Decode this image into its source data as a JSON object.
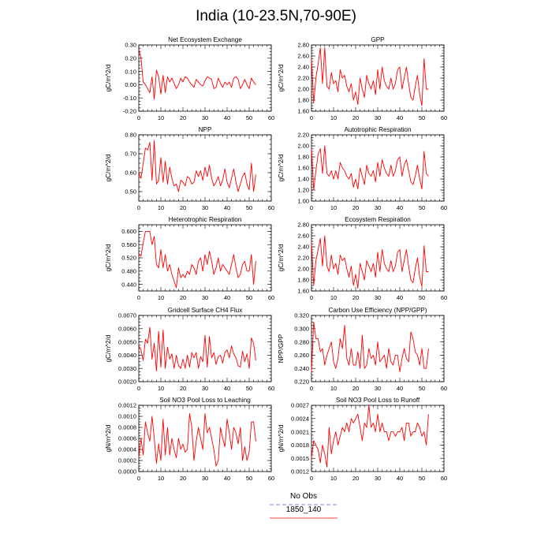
{
  "title": "India (10-23.5N,70-90E)",
  "legend": {
    "items": [
      {
        "label": "No Obs",
        "color": "#8080ff",
        "dash": true
      },
      {
        "label": "1850_140",
        "color": "#ff4040",
        "dash": false
      }
    ]
  },
  "chart_data": [
    {
      "type": "line",
      "title": "Net Ecosystem Exchange",
      "ylabel": "gC/m^2/d",
      "xlim": [
        0,
        60
      ],
      "xticks": [
        0,
        10,
        20,
        30,
        40,
        50,
        60
      ],
      "ylim": [
        -0.2,
        0.3
      ],
      "yticks": [
        "-0.20",
        "-0.10",
        "0.00",
        "0.10",
        "0.20",
        "0.30"
      ],
      "series": [
        {
          "color": "#ff0000",
          "x0": 0,
          "values": [
            0.27,
            0.2,
            0.02,
            0.0,
            -0.03,
            -0.06,
            0.06,
            -0.11,
            0.11,
            0.06,
            -0.07,
            0.07,
            -0.06,
            0.06,
            0.02,
            0.05,
            0.01,
            -0.03,
            0.0,
            0.05,
            0.02,
            0.06,
            0.05,
            0.02,
            0.0,
            -0.02,
            0.04,
            0.02,
            0.0,
            -0.01,
            0.03,
            0.06,
            0.05,
            0.04,
            -0.03,
            -0.02,
            0.05,
            0.01,
            -0.02,
            0.02,
            0.0,
            0.02,
            -0.02,
            0.05,
            0.06,
            0.04,
            -0.03,
            0.0,
            0.04,
            0.0,
            -0.03,
            0.05,
            0.02,
            0.0
          ]
        }
      ]
    },
    {
      "type": "line",
      "title": "GPP",
      "ylabel": "gC/m^2/d",
      "xlim": [
        0,
        60
      ],
      "xticks": [
        0,
        10,
        20,
        30,
        40,
        50,
        60
      ],
      "ylim": [
        1.6,
        2.8
      ],
      "yticks": [
        "1.60",
        "1.80",
        "2.00",
        "2.20",
        "2.40",
        "2.60",
        "2.80"
      ],
      "series": [
        {
          "color": "#ff0000",
          "x0": 0,
          "values": [
            2.55,
            1.75,
            2.2,
            2.45,
            2.75,
            2.1,
            2.75,
            2.05,
            2.0,
            2.3,
            2.1,
            2.15,
            1.95,
            2.35,
            2.2,
            2.25,
            2.05,
            1.95,
            2.1,
            1.8,
            1.95,
            1.72,
            2.2,
            2.0,
            1.85,
            2.25,
            2.1,
            2.0,
            2.15,
            1.9,
            2.35,
            2.0,
            2.4,
            2.15,
            2.05,
            2.0,
            2.2,
            2.0,
            2.1,
            2.35,
            2.4,
            2.0,
            2.2,
            2.4,
            2.1,
            1.85,
            1.8,
            2.05,
            2.25,
            1.9,
            1.7,
            2.55,
            2.0,
            2.0
          ]
        }
      ]
    },
    {
      "type": "line",
      "title": "NPP",
      "ylabel": "gC/m^2/d",
      "xlim": [
        0,
        60
      ],
      "xticks": [
        0,
        10,
        20,
        30,
        40,
        50,
        60
      ],
      "ylim": [
        0.45,
        0.8
      ],
      "yticks": [
        "0.50",
        "0.60",
        "0.70",
        "0.80"
      ],
      "series": [
        {
          "color": "#ff0000",
          "x0": 0,
          "values": [
            0.6,
            0.57,
            0.65,
            0.73,
            0.72,
            0.76,
            0.56,
            0.77,
            0.54,
            0.56,
            0.68,
            0.55,
            0.66,
            0.54,
            0.63,
            0.57,
            0.53,
            0.54,
            0.5,
            0.56,
            0.55,
            0.53,
            0.58,
            0.57,
            0.54,
            0.55,
            0.61,
            0.58,
            0.61,
            0.56,
            0.63,
            0.58,
            0.64,
            0.57,
            0.53,
            0.55,
            0.58,
            0.53,
            0.56,
            0.62,
            0.55,
            0.52,
            0.57,
            0.62,
            0.55,
            0.5,
            0.54,
            0.58,
            0.6,
            0.54,
            0.51,
            0.65,
            0.5,
            0.59
          ]
        }
      ]
    },
    {
      "type": "line",
      "title": "Autotrophic Respiration",
      "ylabel": "gC/m^2/d",
      "xlim": [
        0,
        60
      ],
      "xticks": [
        0,
        10,
        20,
        30,
        40,
        50,
        60
      ],
      "ylim": [
        1.0,
        2.2
      ],
      "yticks": [
        "1.00",
        "1.20",
        "1.40",
        "1.60",
        "1.80",
        "2.00",
        "2.20"
      ],
      "series": [
        {
          "color": "#ff0000",
          "x0": 0,
          "values": [
            1.95,
            1.2,
            1.55,
            1.85,
            1.95,
            1.5,
            2.0,
            1.5,
            1.45,
            1.55,
            1.4,
            1.55,
            1.4,
            1.7,
            1.6,
            1.55,
            1.45,
            1.4,
            1.5,
            1.25,
            1.4,
            1.22,
            1.6,
            1.45,
            1.3,
            1.65,
            1.5,
            1.45,
            1.55,
            1.35,
            1.7,
            1.45,
            1.75,
            1.6,
            1.5,
            1.45,
            1.65,
            1.45,
            1.55,
            1.75,
            1.8,
            1.45,
            1.65,
            1.75,
            1.55,
            1.35,
            1.3,
            1.45,
            1.65,
            1.4,
            1.22,
            1.9,
            1.5,
            1.45
          ]
        }
      ]
    },
    {
      "type": "line",
      "title": "Heterotrophic Respiration",
      "ylabel": "gC/m^2/d",
      "xlim": [
        0,
        60
      ],
      "xticks": [
        0,
        10,
        20,
        30,
        40,
        50,
        60
      ],
      "ylim": [
        0.42,
        0.62
      ],
      "yticks": [
        "0.440",
        "0.480",
        "0.520",
        "0.560",
        "0.600"
      ],
      "series": [
        {
          "color": "#ff0000",
          "x0": 0,
          "values": [
            0.53,
            0.525,
            0.565,
            0.6,
            0.6,
            0.6,
            0.56,
            0.585,
            0.5,
            0.49,
            0.545,
            0.49,
            0.53,
            0.48,
            0.5,
            0.47,
            0.45,
            0.43,
            0.49,
            0.46,
            0.47,
            0.46,
            0.48,
            0.47,
            0.5,
            0.49,
            0.47,
            0.51,
            0.52,
            0.48,
            0.53,
            0.5,
            0.54,
            0.51,
            0.47,
            0.49,
            0.52,
            0.48,
            0.5,
            0.49,
            0.48,
            0.47,
            0.5,
            0.53,
            0.49,
            0.46,
            0.47,
            0.5,
            0.51,
            0.48,
            0.48,
            0.53,
            0.44,
            0.51
          ]
        }
      ]
    },
    {
      "type": "line",
      "title": "Ecosystem Respiration",
      "ylabel": "gC/m^2/d",
      "xlim": [
        0,
        60
      ],
      "xticks": [
        0,
        10,
        20,
        30,
        40,
        50,
        60
      ],
      "ylim": [
        1.6,
        2.8
      ],
      "yticks": [
        "1.60",
        "1.80",
        "2.00",
        "2.20",
        "2.40",
        "2.60",
        "2.80"
      ],
      "series": [
        {
          "color": "#ff0000",
          "x0": 0,
          "values": [
            2.48,
            1.7,
            2.15,
            2.35,
            2.55,
            2.05,
            2.6,
            2.05,
            1.95,
            2.25,
            2.0,
            2.1,
            1.9,
            2.25,
            2.15,
            2.2,
            2.0,
            1.85,
            2.05,
            1.7,
            1.9,
            1.65,
            2.1,
            1.95,
            1.8,
            2.15,
            2.05,
            1.95,
            2.1,
            1.85,
            2.3,
            1.95,
            2.35,
            2.1,
            2.0,
            1.95,
            2.15,
            1.95,
            2.05,
            2.3,
            2.35,
            1.95,
            2.15,
            2.35,
            2.05,
            1.8,
            1.75,
            2.0,
            2.2,
            1.85,
            1.68,
            2.42,
            1.95,
            1.95
          ]
        }
      ]
    },
    {
      "type": "line",
      "title": "Gridcell Surface CH4 Flux",
      "ylabel": "gC/m^2/d",
      "xlim": [
        0,
        60
      ],
      "xticks": [
        0,
        10,
        20,
        30,
        40,
        50,
        60
      ],
      "ylim": [
        0.002,
        0.007
      ],
      "yticks": [
        "0.0020",
        "0.0030",
        "0.0040",
        "0.0050",
        "0.0060",
        "0.0070"
      ],
      "series": [
        {
          "color": "#ff0000",
          "x0": 0,
          "values": [
            0.0047,
            0.0044,
            0.0036,
            0.0052,
            0.0049,
            0.0061,
            0.0037,
            0.0049,
            0.0028,
            0.0058,
            0.0031,
            0.0059,
            0.003,
            0.0046,
            0.0037,
            0.0041,
            0.003,
            0.004,
            0.0032,
            0.003,
            0.0037,
            0.003,
            0.004,
            0.0031,
            0.0042,
            0.0038,
            0.0042,
            0.003,
            0.0039,
            0.0035,
            0.0055,
            0.0031,
            0.0054,
            0.0038,
            0.0042,
            0.0033,
            0.0039,
            0.004,
            0.0034,
            0.0042,
            0.0044,
            0.0038,
            0.0047,
            0.0041,
            0.0038,
            0.0032,
            0.0031,
            0.0043,
            0.0035,
            0.0041,
            0.003,
            0.0053,
            0.0049,
            0.0036
          ]
        }
      ]
    },
    {
      "type": "line",
      "title": "Carbon Use Efficiency (NPP/GPP)",
      "ylabel": "NPP/GPP",
      "xlim": [
        0,
        60
      ],
      "xticks": [
        0,
        10,
        20,
        30,
        40,
        50,
        60
      ],
      "ylim": [
        0.22,
        0.32
      ],
      "yticks": [
        "0.220",
        "0.240",
        "0.260",
        "0.280",
        "0.300",
        "0.320"
      ],
      "series": [
        {
          "color": "#ff0000",
          "x0": 0,
          "values": [
            0.235,
            0.31,
            0.285,
            0.285,
            0.265,
            0.27,
            0.245,
            0.26,
            0.27,
            0.28,
            0.25,
            0.24,
            0.255,
            0.285,
            0.27,
            0.305,
            0.255,
            0.245,
            0.27,
            0.245,
            0.245,
            0.265,
            0.24,
            0.29,
            0.24,
            0.245,
            0.27,
            0.255,
            0.26,
            0.245,
            0.28,
            0.25,
            0.255,
            0.26,
            0.24,
            0.27,
            0.25,
            0.245,
            0.26,
            0.26,
            0.235,
            0.255,
            0.27,
            0.255,
            0.25,
            0.295,
            0.285,
            0.265,
            0.26,
            0.245,
            0.27,
            0.24,
            0.24,
            0.27
          ]
        }
      ]
    },
    {
      "type": "line",
      "title": "Soil NO3 Pool Loss to Leaching",
      "ylabel": "gN/m^2/d",
      "xlim": [
        0,
        60
      ],
      "xticks": [
        0,
        10,
        20,
        30,
        40,
        50,
        60
      ],
      "ylim": [
        0.0,
        0.0012
      ],
      "yticks": [
        "0.0000",
        "0.0002",
        "0.0004",
        "0.0006",
        "0.0008",
        "0.0010",
        "0.0012"
      ],
      "series": [
        {
          "color": "#ff0000",
          "x0": 0,
          "values": [
            0.00025,
            0.0006,
            0.0003,
            0.0009,
            0.0007,
            0.00055,
            0.001,
            0.0006,
            0.00015,
            0.0005,
            0.0002,
            0.00095,
            0.0003,
            0.0008,
            0.0003,
            0.0006,
            0.0004,
            0.00025,
            0.0006,
            0.0004,
            0.0005,
            0.00035,
            0.0004,
            0.00105,
            0.0008,
            0.0002,
            0.00055,
            0.0008,
            0.0006,
            0.0004,
            0.00105,
            0.0007,
            0.0008,
            0.0006,
            0.0004,
            0.0001,
            0.0002,
            0.0008,
            0.0006,
            0.00045,
            0.00095,
            0.0007,
            0.0004,
            0.0008,
            0.0007,
            0.0005,
            0.0008,
            0.0002,
            0.00045,
            0.0002,
            0.00035,
            0.0009,
            0.0009,
            0.00055
          ]
        }
      ]
    },
    {
      "type": "line",
      "title": "Soil NO3 Pool Loss to Runoff",
      "ylabel": "gN/m^2/d",
      "xlim": [
        0,
        60
      ],
      "xticks": [
        0,
        10,
        20,
        30,
        40,
        50,
        60
      ],
      "ylim": [
        0.0012,
        0.0027
      ],
      "yticks": [
        "0.0012",
        "0.0015",
        "0.0018",
        "0.0021",
        "0.0024",
        "0.0027"
      ],
      "series": [
        {
          "color": "#ff0000",
          "x0": 0,
          "values": [
            0.0015,
            0.0019,
            0.0018,
            0.0017,
            0.0014,
            0.0018,
            0.0016,
            0.0013,
            0.0022,
            0.0016,
            0.0019,
            0.0021,
            0.0018,
            0.002,
            0.0022,
            0.0021,
            0.0023,
            0.0021,
            0.0024,
            0.0023,
            0.0024,
            0.0025,
            0.0022,
            0.0019,
            0.0023,
            0.0022,
            0.0027,
            0.0022,
            0.0023,
            0.0021,
            0.0025,
            0.0021,
            0.0023,
            0.0021,
            0.0021,
            0.0019,
            0.0021,
            0.0021,
            0.002,
            0.0021,
            0.0021,
            0.0022,
            0.0019,
            0.0023,
            0.0023,
            0.002,
            0.0021,
            0.0021,
            0.0023,
            0.0022,
            0.002,
            0.0021,
            0.0018,
            0.0025
          ]
        }
      ]
    }
  ]
}
